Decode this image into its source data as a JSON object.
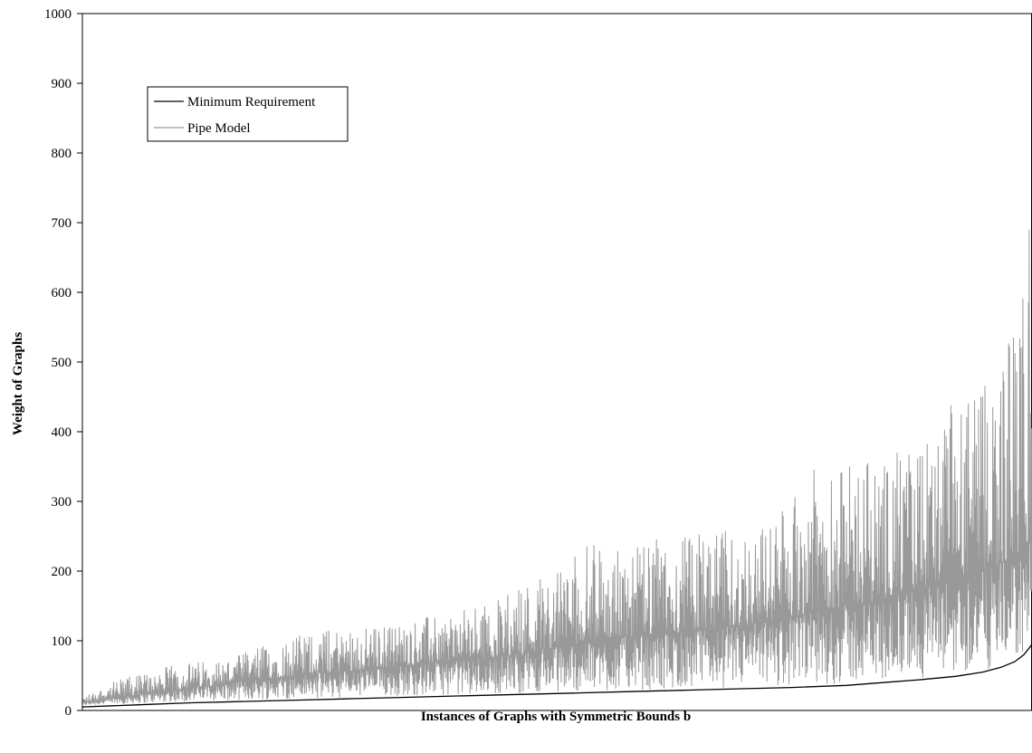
{
  "chart_data": {
    "type": "line",
    "title": "",
    "xlabel": "Instances of Graphs with Symmetric Bounds b",
    "ylabel": "Weight of Graphs",
    "ylim": [
      0,
      1000
    ],
    "yticks": [
      0,
      100,
      200,
      300,
      400,
      500,
      600,
      700,
      800,
      900,
      1000
    ],
    "grid": false,
    "legend_position": "top-left",
    "series": [
      {
        "name": "Minimum Requirement",
        "color": "#000000",
        "points": [
          [
            0,
            5
          ],
          [
            60,
            8
          ],
          [
            120,
            11
          ],
          [
            180,
            13
          ],
          [
            240,
            15
          ],
          [
            300,
            17
          ],
          [
            360,
            19
          ],
          [
            420,
            21
          ],
          [
            480,
            23
          ],
          [
            540,
            25
          ],
          [
            600,
            27
          ],
          [
            660,
            29
          ],
          [
            720,
            31
          ],
          [
            780,
            33
          ],
          [
            840,
            36
          ],
          [
            880,
            40
          ],
          [
            920,
            44
          ],
          [
            960,
            49
          ],
          [
            990,
            55
          ],
          [
            1010,
            62
          ],
          [
            1025,
            70
          ],
          [
            1035,
            80
          ],
          [
            1040,
            88
          ],
          [
            1044,
            95
          ]
        ]
      },
      {
        "name": "Pipe Model",
        "color": "#999999",
        "envelope": [
          [
            0,
            10,
            20
          ],
          [
            40,
            18,
            45
          ],
          [
            80,
            25,
            60
          ],
          [
            120,
            32,
            70
          ],
          [
            160,
            38,
            75
          ],
          [
            200,
            45,
            95
          ],
          [
            240,
            50,
            110
          ],
          [
            280,
            55,
            120
          ],
          [
            320,
            60,
            120
          ],
          [
            360,
            65,
            130
          ],
          [
            400,
            70,
            140
          ],
          [
            440,
            75,
            150
          ],
          [
            480,
            80,
            180
          ],
          [
            520,
            90,
            210
          ],
          [
            560,
            100,
            240
          ],
          [
            600,
            105,
            230
          ],
          [
            640,
            110,
            250
          ],
          [
            680,
            115,
            255
          ],
          [
            720,
            120,
            260
          ],
          [
            760,
            130,
            270
          ],
          [
            800,
            140,
            345
          ],
          [
            840,
            150,
            350
          ],
          [
            880,
            160,
            370
          ],
          [
            920,
            175,
            380
          ],
          [
            960,
            190,
            450
          ],
          [
            990,
            200,
            460
          ],
          [
            1010,
            210,
            520
          ],
          [
            1025,
            220,
            560
          ],
          [
            1035,
            230,
            660
          ],
          [
            1044,
            240,
            790
          ]
        ]
      }
    ]
  }
}
